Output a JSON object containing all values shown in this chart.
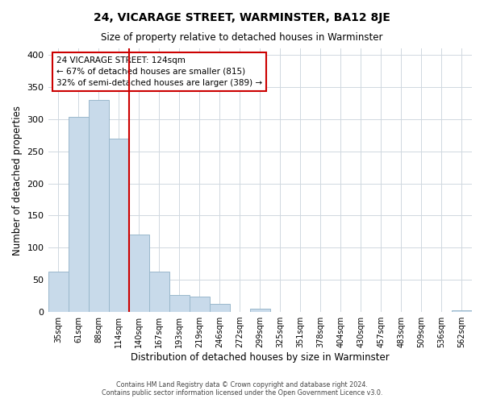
{
  "title": "24, VICARAGE STREET, WARMINSTER, BA12 8JE",
  "subtitle": "Size of property relative to detached houses in Warminster",
  "xlabel": "Distribution of detached houses by size in Warminster",
  "ylabel": "Number of detached properties",
  "bar_labels": [
    "35sqm",
    "61sqm",
    "88sqm",
    "114sqm",
    "140sqm",
    "167sqm",
    "193sqm",
    "219sqm",
    "246sqm",
    "272sqm",
    "299sqm",
    "325sqm",
    "351sqm",
    "378sqm",
    "404sqm",
    "430sqm",
    "457sqm",
    "483sqm",
    "509sqm",
    "536sqm",
    "562sqm"
  ],
  "bar_values": [
    63,
    303,
    330,
    270,
    120,
    63,
    26,
    24,
    13,
    0,
    5,
    0,
    0,
    0,
    0,
    0,
    0,
    0,
    0,
    0,
    3
  ],
  "bar_color": "#c8daea",
  "bar_edge_color": "#9ab8cc",
  "vline_x": 3.5,
  "vline_color": "#cc0000",
  "annotation_title": "24 VICARAGE STREET: 124sqm",
  "annotation_line1": "← 67% of detached houses are smaller (815)",
  "annotation_line2": "32% of semi-detached houses are larger (389) →",
  "annotation_box_color": "#ffffff",
  "annotation_box_edge": "#cc0000",
  "ylim": [
    0,
    410
  ],
  "yticks": [
    0,
    50,
    100,
    150,
    200,
    250,
    300,
    350,
    400
  ],
  "footer1": "Contains HM Land Registry data © Crown copyright and database right 2024.",
  "footer2": "Contains public sector information licensed under the Open Government Licence v3.0.",
  "background_color": "#ffffff",
  "grid_color": "#d0d8e0"
}
